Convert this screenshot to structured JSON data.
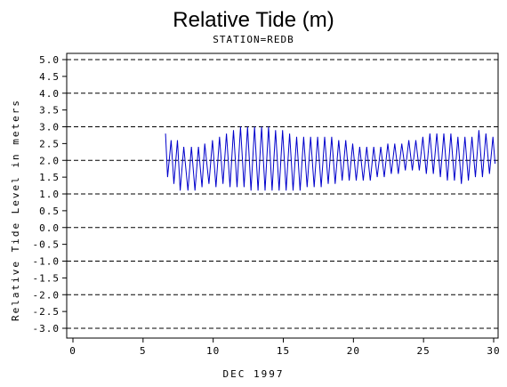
{
  "chart_data": {
    "type": "line",
    "title": "Relative Tide (m)",
    "subtitle": "STATION=REDB",
    "xlabel": "DEC 1997",
    "ylabel": "Relative Tide Level in meters",
    "xlim": [
      0,
      30
    ],
    "ylim": [
      -3.0,
      5.0
    ],
    "x_ticks": [
      0,
      5,
      10,
      15,
      20,
      25,
      30
    ],
    "x_tick_labels": [
      "0",
      "5",
      "10",
      "15",
      "20",
      "25",
      "30"
    ],
    "y_ticks": [
      5.0,
      4.5,
      4.0,
      3.5,
      3.0,
      2.5,
      2.0,
      1.5,
      1.0,
      0.5,
      0.0,
      -0.5,
      -1.0,
      -1.5,
      -2.0,
      -2.5,
      -3.0
    ],
    "y_tick_labels": [
      "5.0",
      "4.5",
      "4.0",
      "3.5",
      "3.0",
      "2.5",
      "2.0",
      "1.5",
      "1.0",
      "0.5",
      "0.0",
      "-0.5",
      "-1.0",
      "-1.5",
      "-2.0",
      "-2.5",
      "-3.0"
    ],
    "grid_lines_y": [
      5.0,
      4.0,
      3.0,
      2.0,
      1.0,
      0.0,
      -1.0,
      -2.0,
      -3.0
    ],
    "grid": "dashed horizontal at whole meters",
    "series": [
      {
        "color": "#0000cc",
        "x": [
          6.6,
          6.75,
          7.0,
          7.2,
          7.45,
          7.65,
          7.9,
          8.2,
          8.45,
          8.7,
          8.95,
          9.2,
          9.4,
          9.7,
          9.95,
          10.2,
          10.45,
          10.7,
          10.95,
          11.2,
          11.45,
          11.7,
          11.95,
          12.2,
          12.45,
          12.7,
          12.95,
          13.2,
          13.45,
          13.7,
          13.95,
          14.2,
          14.45,
          14.7,
          14.95,
          15.2,
          15.45,
          15.7,
          15.95,
          16.2,
          16.45,
          16.7,
          16.95,
          17.2,
          17.45,
          17.7,
          17.95,
          18.2,
          18.45,
          18.7,
          18.95,
          19.2,
          19.45,
          19.7,
          19.95,
          20.2,
          20.45,
          20.7,
          20.95,
          21.2,
          21.45,
          21.7,
          21.95,
          22.2,
          22.45,
          22.7,
          22.95,
          23.2,
          23.45,
          23.7,
          23.95,
          24.2,
          24.45,
          24.7,
          24.95,
          25.2,
          25.45,
          25.7,
          25.95,
          26.2,
          26.45,
          26.7,
          26.95,
          27.2,
          27.45,
          27.7,
          27.95,
          28.2,
          28.45,
          28.7,
          28.95,
          29.2,
          29.45,
          29.7,
          29.95,
          30.1
        ],
        "y": [
          2.8,
          1.5,
          2.6,
          1.3,
          2.6,
          1.1,
          2.4,
          1.1,
          2.4,
          1.1,
          2.4,
          1.2,
          2.5,
          1.3,
          2.6,
          1.2,
          2.7,
          1.3,
          2.8,
          1.2,
          2.9,
          1.2,
          3.0,
          1.2,
          3.0,
          1.1,
          3.0,
          1.1,
          3.0,
          1.1,
          3.0,
          1.1,
          2.9,
          1.1,
          2.9,
          1.1,
          2.8,
          1.1,
          2.7,
          1.1,
          2.7,
          1.2,
          2.7,
          1.2,
          2.7,
          1.2,
          2.7,
          1.3,
          2.7,
          1.3,
          2.6,
          1.4,
          2.6,
          1.4,
          2.5,
          1.4,
          2.4,
          1.4,
          2.4,
          1.4,
          2.4,
          1.5,
          2.4,
          1.5,
          2.5,
          1.6,
          2.5,
          1.6,
          2.5,
          1.7,
          2.6,
          1.7,
          2.6,
          1.7,
          2.7,
          1.6,
          2.8,
          1.6,
          2.8,
          1.5,
          2.8,
          1.4,
          2.8,
          1.4,
          2.7,
          1.3,
          2.7,
          1.4,
          2.7,
          1.5,
          2.9,
          1.5,
          2.8,
          1.6,
          2.7,
          1.9
        ]
      }
    ]
  }
}
